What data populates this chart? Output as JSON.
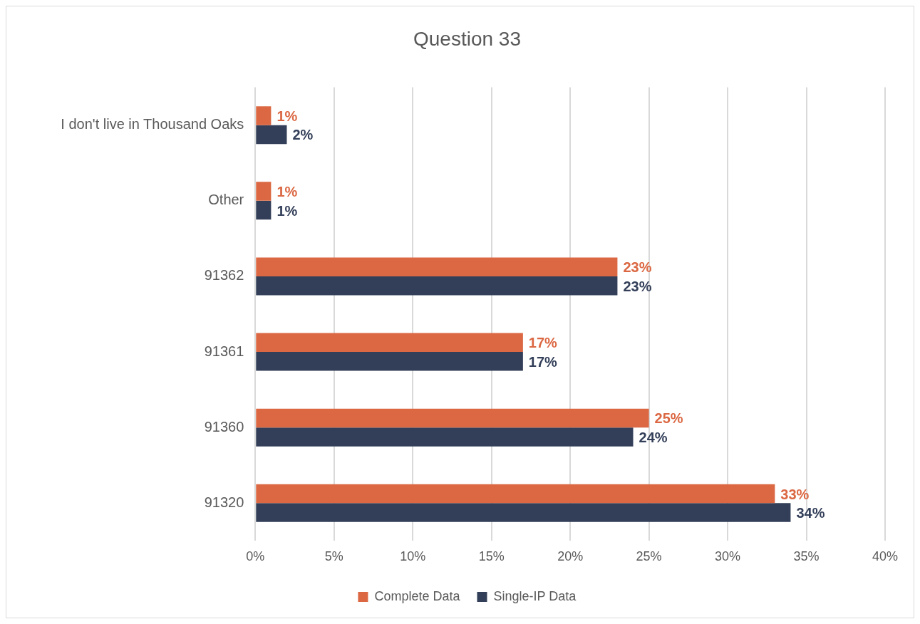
{
  "chart_data": {
    "type": "bar",
    "orientation": "horizontal",
    "title": "Question 33",
    "categories": [
      "I don't live in Thousand Oaks",
      "Other",
      "91362",
      "91361",
      "91360",
      "91320"
    ],
    "series": [
      {
        "name": "Complete Data",
        "color": "#db6843",
        "values": [
          1,
          1,
          23,
          17,
          25,
          33
        ],
        "value_labels": [
          "1%",
          "1%",
          "23%",
          "17%",
          "25%",
          "33%"
        ]
      },
      {
        "name": "Single-IP Data",
        "color": "#333f59",
        "values": [
          2,
          1,
          23,
          17,
          24,
          34
        ],
        "value_labels": [
          "2%",
          "1%",
          "23%",
          "17%",
          "24%",
          "34%"
        ]
      }
    ],
    "xlim": [
      0,
      40
    ],
    "xticks": [
      {
        "value": 0,
        "label": "0%"
      },
      {
        "value": 5,
        "label": "5%"
      },
      {
        "value": 10,
        "label": "10%"
      },
      {
        "value": 15,
        "label": "15%"
      },
      {
        "value": 20,
        "label": "20%"
      },
      {
        "value": 25,
        "label": "25%"
      },
      {
        "value": 30,
        "label": "30%"
      },
      {
        "value": 35,
        "label": "35%"
      },
      {
        "value": 40,
        "label": "40%"
      }
    ],
    "grid": "x",
    "legend": "bottom"
  }
}
